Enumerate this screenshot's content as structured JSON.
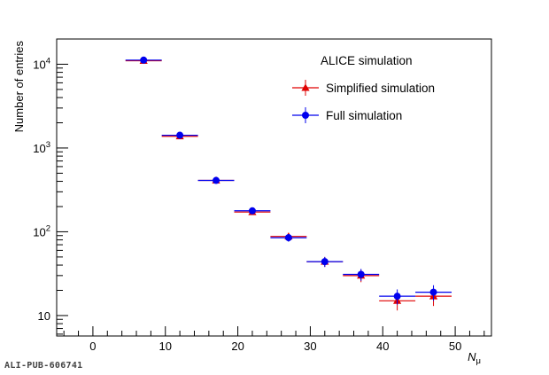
{
  "chart_data": {
    "type": "scatter",
    "title": "ALICE simulation",
    "xlabel_main": "N",
    "xlabel_sub": "μ",
    "ylabel": "Number of entries",
    "xlim": [
      -5,
      55
    ],
    "ylim": [
      5.7,
      20000
    ],
    "yscale": "log",
    "x_ticks": [
      0,
      10,
      20,
      30,
      40,
      50
    ],
    "y_ticks": [
      {
        "value": 10,
        "base": "10",
        "exp": ""
      },
      {
        "value": 100,
        "base": "10",
        "exp": "2"
      },
      {
        "value": 1000,
        "base": "10",
        "exp": "3"
      },
      {
        "value": 10000,
        "base": "10",
        "exp": "4"
      }
    ],
    "grid": false,
    "legend_position": "top-right",
    "bin_width": 5,
    "series": [
      {
        "name": "Simplified simulation",
        "marker": "triangle",
        "color": "#e00000",
        "x": [
          7,
          12,
          17,
          22,
          27,
          32,
          37,
          42,
          47
        ],
        "y": [
          11000,
          1380,
          410,
          172,
          88,
          44,
          30,
          15,
          17
        ],
        "yerr": [
          100,
          35,
          20,
          13,
          9,
          6,
          5,
          3.5,
          4
        ]
      },
      {
        "name": "Full simulation",
        "marker": "circle",
        "color": "#0000ee",
        "x": [
          7,
          12,
          17,
          22,
          27,
          32,
          37,
          42,
          47
        ],
        "y": [
          11200,
          1420,
          410,
          178,
          85,
          44,
          31,
          17,
          19
        ],
        "yerr": [
          100,
          35,
          20,
          13,
          9,
          6,
          5,
          3.5,
          4
        ]
      }
    ]
  },
  "footer": {
    "pub_id": "ALI-PUB-606741"
  }
}
